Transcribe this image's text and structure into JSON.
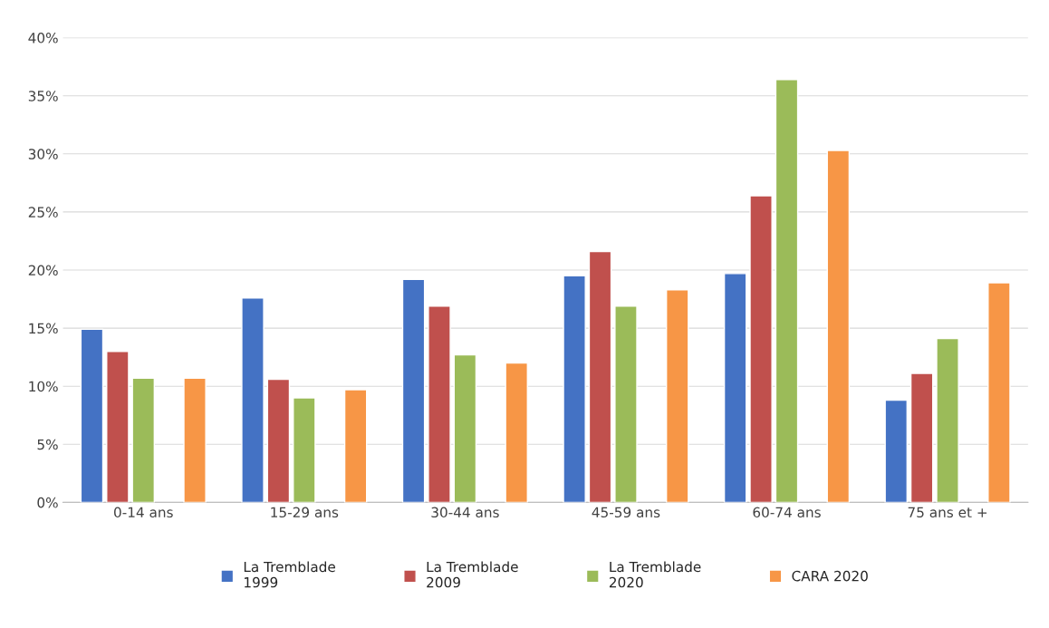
{
  "chart_data": {
    "type": "bar",
    "categories": [
      "0-14 ans",
      "15-29 ans",
      "30-44 ans",
      "45-59 ans",
      "60-74 ans",
      "75 ans et +"
    ],
    "series": [
      {
        "name": "La Tremblade\n1999",
        "color": "#4472c4",
        "values": [
          14.9,
          17.6,
          19.2,
          19.5,
          19.7,
          8.8
        ]
      },
      {
        "name": "La Tremblade\n2009",
        "color": "#c0504d",
        "values": [
          13.0,
          10.6,
          16.9,
          21.6,
          26.4,
          11.1
        ]
      },
      {
        "name": "La Tremblade\n2020",
        "color": "#9bbb59",
        "values": [
          10.7,
          9.0,
          12.7,
          16.9,
          36.4,
          14.1
        ]
      },
      {
        "values": [
          null,
          null,
          null,
          null,
          null,
          null
        ]
      },
      {
        "name": "CARA 2020",
        "color": "#f79646",
        "values": [
          10.7,
          9.7,
          12.0,
          18.3,
          30.3,
          18.9
        ]
      }
    ],
    "ylim": [
      0,
      40
    ],
    "yticks": [
      {
        "value": 0,
        "label": "0%"
      },
      {
        "value": 5,
        "label": "5%"
      },
      {
        "value": 10,
        "label": "10%"
      },
      {
        "value": 15,
        "label": "15%"
      },
      {
        "value": 20,
        "label": "20%"
      },
      {
        "value": 25,
        "label": "25%"
      },
      {
        "value": 30,
        "label": "30%"
      },
      {
        "value": 35,
        "label": "35%"
      },
      {
        "value": 40,
        "label": "40%"
      }
    ],
    "grid": "y",
    "legend": "bottom"
  }
}
